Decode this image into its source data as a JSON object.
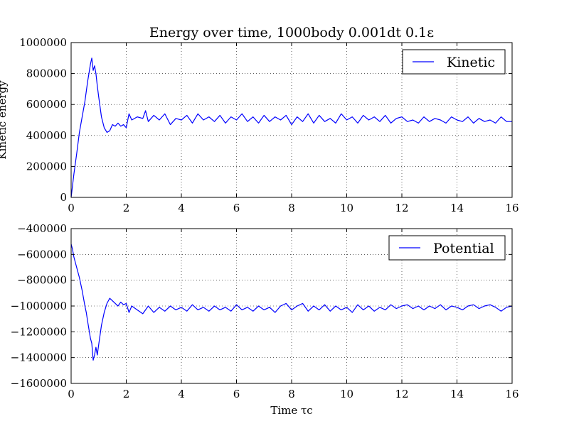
{
  "figure": {
    "title": "Energy over time, 1000body 0.001dt 0.1ε"
  },
  "chart_data": [
    {
      "type": "line",
      "title": "Energy over time, 1000body 0.001dt 0.1ε",
      "xlabel": "",
      "ylabel": "Kinetic energy",
      "xlim": [
        0,
        16
      ],
      "ylim": [
        0,
        1000000
      ],
      "xticks": [
        0,
        2,
        4,
        6,
        8,
        10,
        12,
        14,
        16
      ],
      "yticks": [
        0,
        200000,
        400000,
        600000,
        800000,
        1000000
      ],
      "xtick_labels": [
        "0",
        "2",
        "4",
        "6",
        "8",
        "10",
        "12",
        "14",
        "16"
      ],
      "ytick_labels": [
        "0",
        "200000",
        "400000",
        "600000",
        "800000",
        "1000000"
      ],
      "grid": true,
      "legend_position": "top-right",
      "line_color": "#0000ff",
      "series": [
        {
          "name": "Kinetic",
          "x": [
            0,
            0.1,
            0.2,
            0.3,
            0.4,
            0.5,
            0.6,
            0.7,
            0.75,
            0.8,
            0.85,
            0.9,
            0.95,
            1.0,
            1.1,
            1.2,
            1.3,
            1.4,
            1.5,
            1.6,
            1.7,
            1.8,
            1.9,
            2.0,
            2.1,
            2.2,
            2.4,
            2.6,
            2.7,
            2.8,
            3.0,
            3.2,
            3.4,
            3.6,
            3.8,
            4.0,
            4.2,
            4.4,
            4.6,
            4.8,
            5.0,
            5.2,
            5.4,
            5.6,
            5.8,
            6.0,
            6.2,
            6.4,
            6.6,
            6.8,
            7.0,
            7.2,
            7.4,
            7.6,
            7.8,
            8.0,
            8.2,
            8.4,
            8.6,
            8.8,
            9.0,
            9.2,
            9.4,
            9.6,
            9.8,
            10.0,
            10.2,
            10.4,
            10.6,
            10.8,
            11.0,
            11.2,
            11.4,
            11.6,
            11.8,
            12.0,
            12.2,
            12.4,
            12.6,
            12.8,
            13.0,
            13.2,
            13.4,
            13.6,
            13.8,
            14.0,
            14.2,
            14.4,
            14.6,
            14.8,
            15.0,
            15.2,
            15.4,
            15.6,
            15.8,
            16.0
          ],
          "y": [
            0,
            150000,
            280000,
            420000,
            520000,
            620000,
            750000,
            860000,
            900000,
            820000,
            850000,
            800000,
            720000,
            650000,
            520000,
            450000,
            420000,
            430000,
            470000,
            460000,
            480000,
            460000,
            470000,
            450000,
            540000,
            500000,
            520000,
            510000,
            560000,
            490000,
            530000,
            500000,
            540000,
            470000,
            510000,
            500000,
            530000,
            480000,
            540000,
            500000,
            520000,
            490000,
            530000,
            480000,
            520000,
            500000,
            540000,
            490000,
            520000,
            480000,
            530000,
            490000,
            520000,
            500000,
            530000,
            470000,
            520000,
            490000,
            540000,
            480000,
            530000,
            490000,
            510000,
            480000,
            540000,
            500000,
            520000,
            480000,
            530000,
            500000,
            520000,
            490000,
            530000,
            480000,
            510000,
            520000,
            490000,
            500000,
            480000,
            520000,
            490000,
            510000,
            500000,
            480000,
            520000,
            500000,
            490000,
            520000,
            480000,
            510000,
            490000,
            500000,
            480000,
            520000,
            490000,
            490000
          ]
        }
      ]
    },
    {
      "type": "line",
      "xlabel": "Time τc",
      "ylabel": "",
      "xlim": [
        0,
        16
      ],
      "ylim": [
        -1600000,
        -400000
      ],
      "xticks": [
        0,
        2,
        4,
        6,
        8,
        10,
        12,
        14,
        16
      ],
      "yticks": [
        -1600000,
        -1400000,
        -1200000,
        -1000000,
        -800000,
        -600000,
        -400000
      ],
      "xtick_labels": [
        "0",
        "2",
        "4",
        "6",
        "8",
        "10",
        "12",
        "14",
        "16"
      ],
      "ytick_labels": [
        "−1600000",
        "−1400000",
        "−1200000",
        "−1000000",
        "−800000",
        "−600000",
        "−400000"
      ],
      "grid": true,
      "legend_position": "top-right",
      "line_color": "#0000ff",
      "series": [
        {
          "name": "Potential",
          "x": [
            0,
            0.05,
            0.1,
            0.2,
            0.3,
            0.4,
            0.5,
            0.55,
            0.6,
            0.7,
            0.75,
            0.8,
            0.85,
            0.9,
            0.95,
            1.0,
            1.1,
            1.2,
            1.3,
            1.4,
            1.5,
            1.6,
            1.7,
            1.8,
            1.9,
            2.0,
            2.1,
            2.2,
            2.4,
            2.6,
            2.8,
            3.0,
            3.2,
            3.4,
            3.6,
            3.8,
            4.0,
            4.2,
            4.4,
            4.6,
            4.8,
            5.0,
            5.2,
            5.4,
            5.6,
            5.8,
            6.0,
            6.2,
            6.4,
            6.6,
            6.8,
            7.0,
            7.2,
            7.4,
            7.6,
            7.8,
            8.0,
            8.2,
            8.4,
            8.6,
            8.8,
            9.0,
            9.2,
            9.4,
            9.6,
            9.8,
            10.0,
            10.2,
            10.4,
            10.6,
            10.8,
            11.0,
            11.2,
            11.4,
            11.6,
            11.8,
            12.0,
            12.2,
            12.4,
            12.6,
            12.8,
            13.0,
            13.2,
            13.4,
            13.6,
            13.8,
            14.0,
            14.2,
            14.4,
            14.6,
            14.8,
            15.0,
            15.2,
            15.4,
            15.6,
            15.8,
            16.0
          ],
          "y": [
            -520000,
            -560000,
            -620000,
            -700000,
            -780000,
            -880000,
            -1000000,
            -1050000,
            -1120000,
            -1250000,
            -1290000,
            -1420000,
            -1380000,
            -1320000,
            -1380000,
            -1300000,
            -1150000,
            -1050000,
            -980000,
            -940000,
            -960000,
            -980000,
            -1000000,
            -970000,
            -990000,
            -980000,
            -1050000,
            -1000000,
            -1030000,
            -1060000,
            -1000000,
            -1050000,
            -1010000,
            -1040000,
            -1000000,
            -1030000,
            -1010000,
            -1040000,
            -990000,
            -1030000,
            -1010000,
            -1040000,
            -1000000,
            -1030000,
            -1010000,
            -1040000,
            -990000,
            -1030000,
            -1010000,
            -1040000,
            -1000000,
            -1030000,
            -1010000,
            -1050000,
            -1000000,
            -980000,
            -1030000,
            -1000000,
            -980000,
            -1040000,
            -1000000,
            -1030000,
            -990000,
            -1040000,
            -1000000,
            -1030000,
            -1010000,
            -1050000,
            -990000,
            -1030000,
            -1000000,
            -1040000,
            -1010000,
            -1030000,
            -990000,
            -1020000,
            -1000000,
            -990000,
            -1020000,
            -1000000,
            -1030000,
            -1000000,
            -1020000,
            -990000,
            -1030000,
            -1000000,
            -1010000,
            -1030000,
            -1000000,
            -990000,
            -1020000,
            -1000000,
            -990000,
            -1010000,
            -1040000,
            -1010000,
            -1000000
          ]
        }
      ]
    }
  ]
}
